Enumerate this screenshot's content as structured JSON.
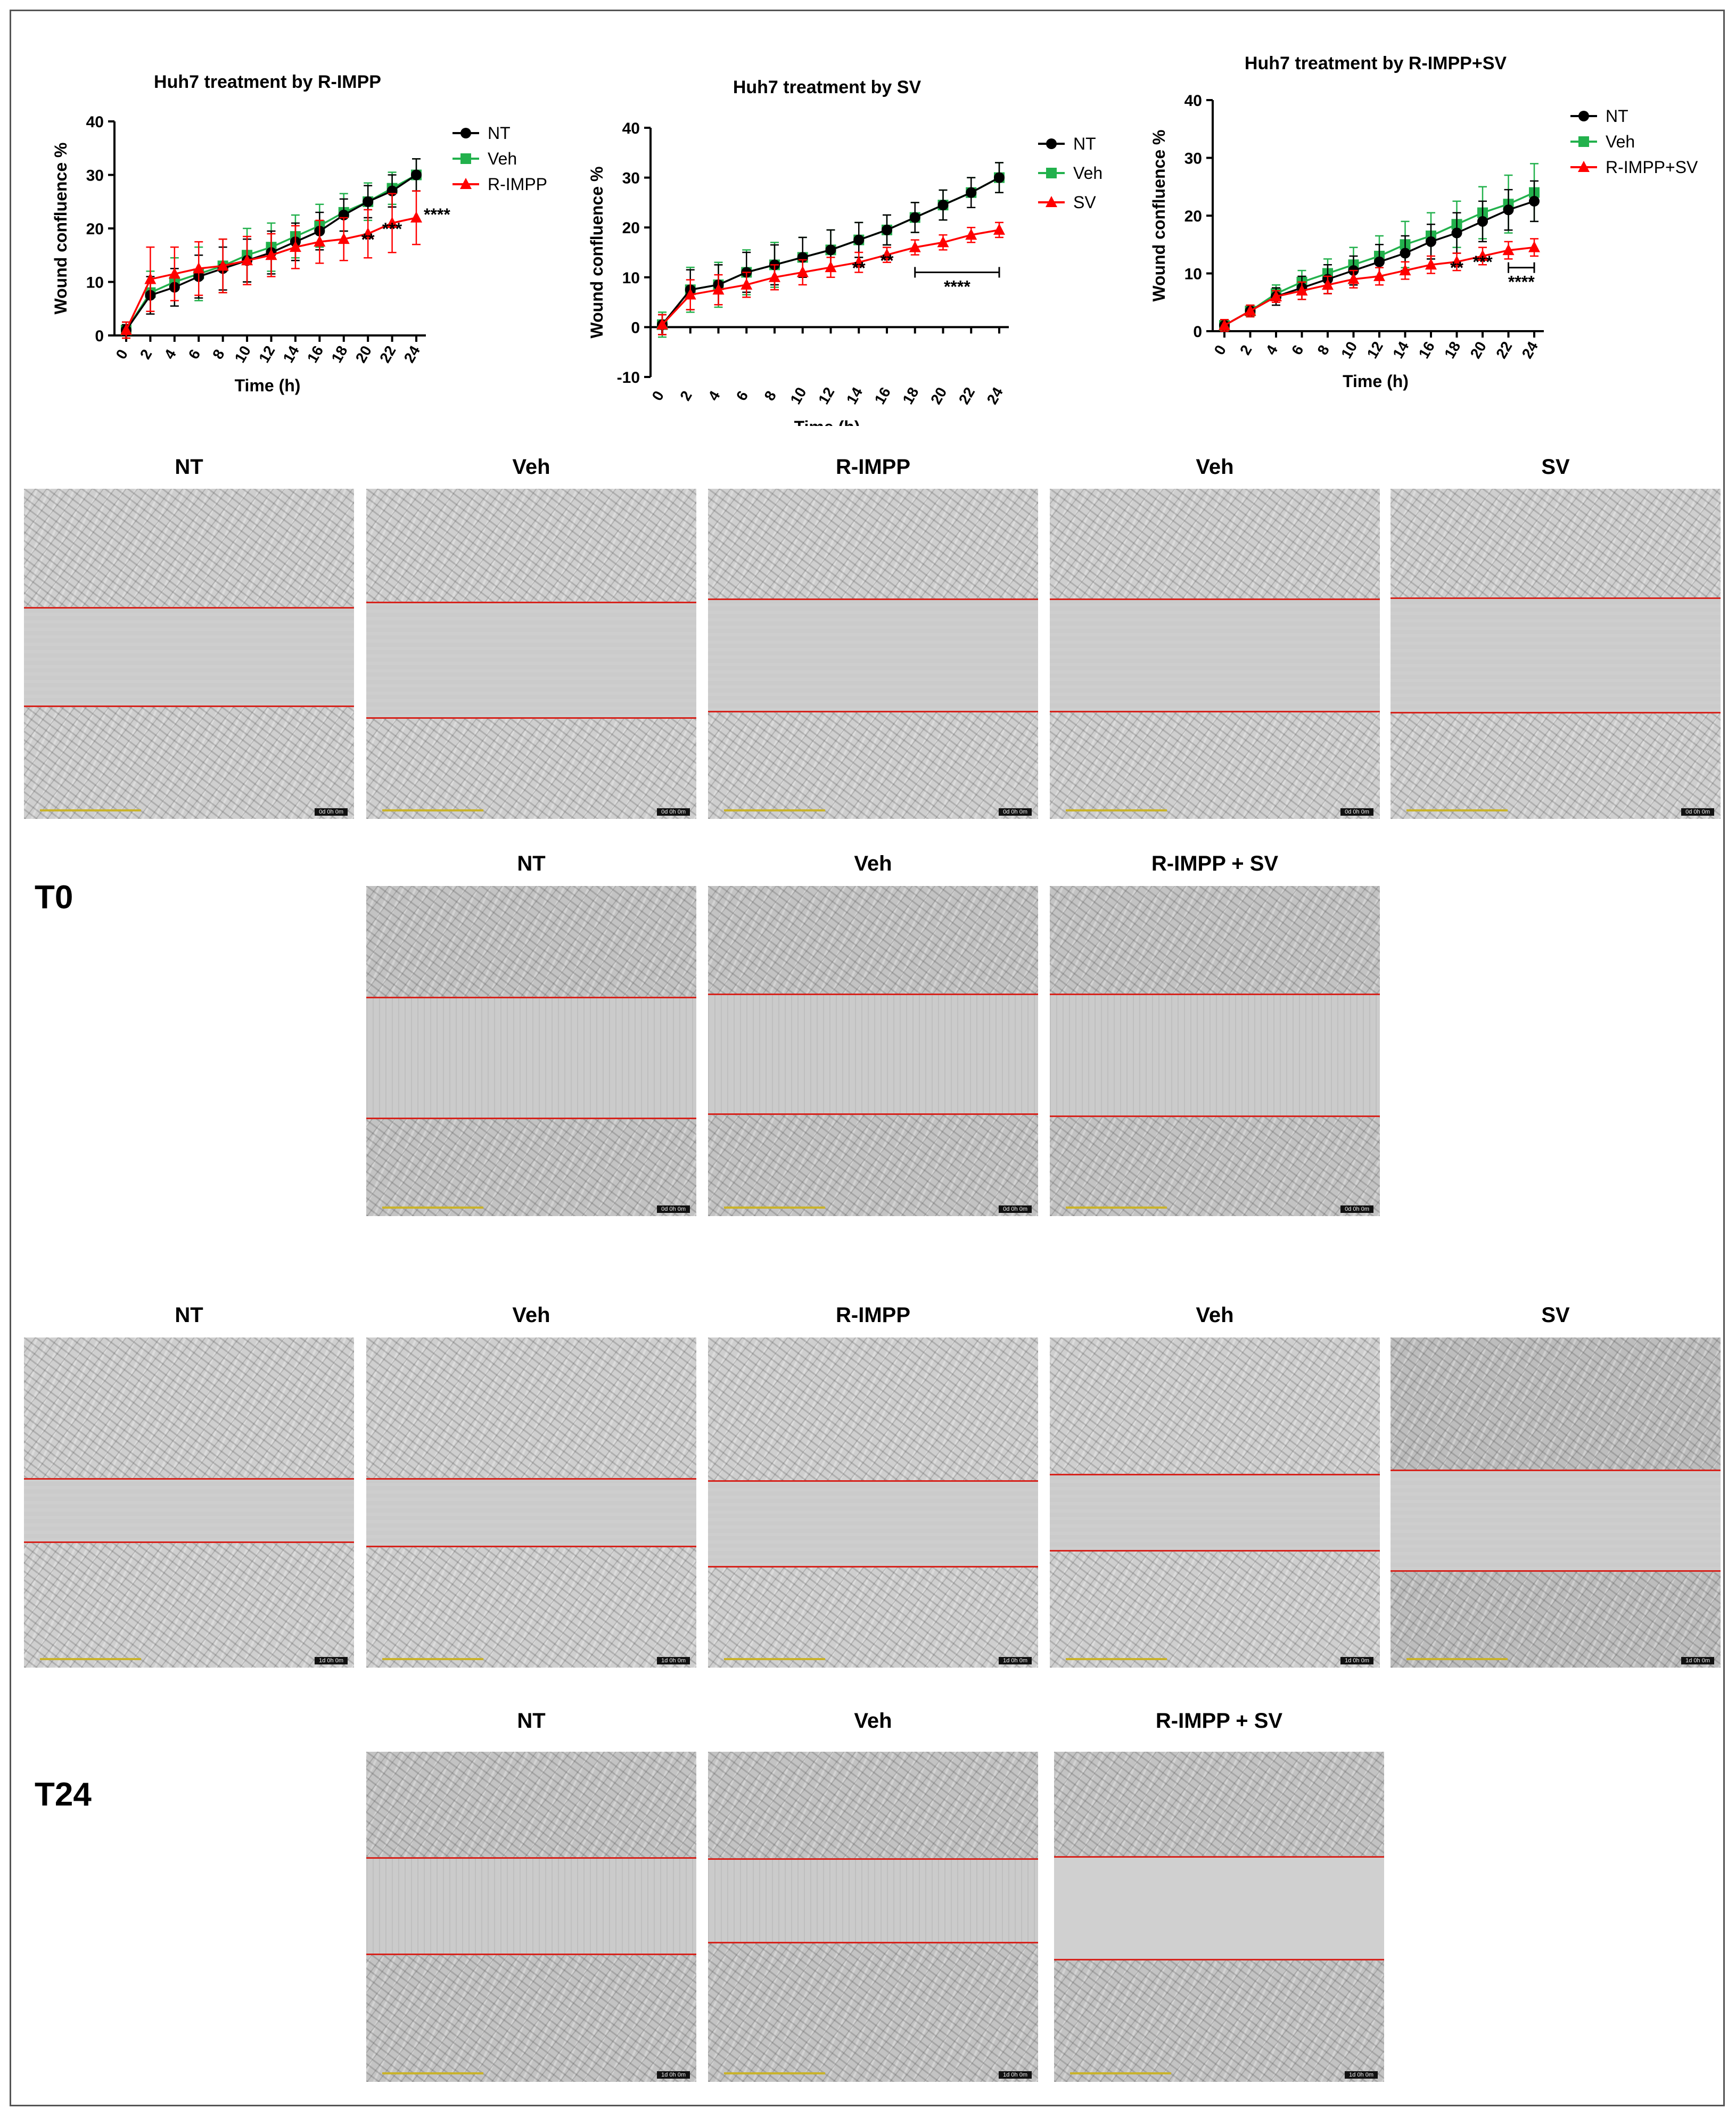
{
  "chart_data": [
    {
      "type": "line",
      "title": "Huh7 treatment by R-IMPP",
      "xlabel": "Time (h)",
      "ylabel": "Wound confluence %",
      "x": [
        0,
        2,
        4,
        6,
        8,
        10,
        12,
        14,
        16,
        18,
        20,
        22,
        24
      ],
      "xticks": [
        "0",
        "2",
        "4",
        "6",
        "8",
        "10",
        "12",
        "14",
        "16",
        "18",
        "20",
        "22",
        "24"
      ],
      "ylim": [
        0,
        40
      ],
      "yticks": [
        "0",
        "10",
        "20",
        "30",
        "40"
      ],
      "legend_position": "top-right",
      "series": [
        {
          "name": "NT",
          "color": "#000000",
          "marker": "circle",
          "values": [
            1,
            7.5,
            9,
            11,
            12.5,
            14,
            15.5,
            17.5,
            19.5,
            22.5,
            25,
            27,
            30
          ],
          "errors": [
            1,
            3.5,
            3.5,
            4,
            4,
            4,
            4,
            3.5,
            3.5,
            3,
            3,
            3,
            3
          ]
        },
        {
          "name": "Veh",
          "color": "#22b14c",
          "marker": "square",
          "values": [
            1,
            8,
            10,
            11.5,
            13,
            15,
            16.5,
            18.5,
            20.5,
            23,
            25,
            27.5,
            30
          ],
          "errors": [
            1.5,
            4,
            4.5,
            5,
            5,
            5,
            4.5,
            4,
            4,
            3.5,
            3.5,
            3,
            3
          ]
        },
        {
          "name": "R-IMPP",
          "color": "#ff0000",
          "marker": "triangle",
          "values": [
            1,
            10.5,
            11.5,
            12.5,
            13,
            14,
            15,
            16.5,
            17.5,
            18,
            19,
            21,
            22
          ],
          "errors": [
            1.5,
            6,
            5,
            5,
            5,
            4.5,
            4,
            4,
            4,
            4,
            4.5,
            5.5,
            5
          ]
        }
      ],
      "annotations": [
        {
          "x": 20,
          "text": "**"
        },
        {
          "x": 22,
          "text": "***"
        },
        {
          "x": 24,
          "text": "****"
        }
      ]
    },
    {
      "type": "line",
      "title": "Huh7 treatment by SV",
      "xlabel": "Time (h)",
      "ylabel": "Wound confluence %",
      "x": [
        0,
        2,
        4,
        6,
        8,
        10,
        12,
        14,
        16,
        18,
        20,
        22,
        24
      ],
      "xticks": [
        "0",
        "2",
        "4",
        "6",
        "8",
        "10",
        "12",
        "14",
        "16",
        "18",
        "20",
        "22",
        "24"
      ],
      "ylim": [
        -10,
        40
      ],
      "yticks": [
        "-10",
        "0",
        "10",
        "20",
        "30",
        "40"
      ],
      "legend_position": "top-right",
      "series": [
        {
          "name": "NT",
          "color": "#000000",
          "marker": "circle",
          "values": [
            0.5,
            7.5,
            8.5,
            11,
            12.5,
            14,
            15.5,
            17.5,
            19.5,
            22,
            24.5,
            27,
            30
          ],
          "errors": [
            2,
            4,
            4,
            4,
            4,
            4,
            4,
            3.5,
            3,
            3,
            3,
            3,
            3
          ]
        },
        {
          "name": "Veh",
          "color": "#22b14c",
          "marker": "square",
          "values": [
            0.5,
            7.5,
            8.5,
            11,
            12.5,
            14,
            15.5,
            17.5,
            19.5,
            22,
            24.5,
            27,
            30
          ],
          "errors": [
            2.5,
            4.5,
            4.5,
            4.5,
            4.5,
            4,
            4,
            3.5,
            3,
            3,
            3,
            3,
            3
          ]
        },
        {
          "name": "SV",
          "color": "#ff0000",
          "marker": "triangle",
          "values": [
            0.5,
            6.5,
            7.5,
            8.5,
            10,
            11,
            12,
            13,
            14.5,
            16,
            17,
            18.5,
            19.5
          ],
          "errors": [
            2,
            3,
            3,
            2.5,
            2.5,
            2.5,
            2,
            2,
            1.5,
            1.5,
            1.5,
            1.5,
            1.5
          ]
        }
      ],
      "annotations": [
        {
          "x": 14,
          "text": "**"
        },
        {
          "x": 16,
          "text": "**"
        },
        {
          "x": 21,
          "text": "****",
          "bracket": [
            18,
            24
          ]
        }
      ]
    },
    {
      "type": "line",
      "title": "Huh7 treatment by R-IMPP+SV",
      "xlabel": "Time (h)",
      "ylabel": "Wound confluence %",
      "x": [
        0,
        2,
        4,
        6,
        8,
        10,
        12,
        14,
        16,
        18,
        20,
        22,
        24
      ],
      "xticks": [
        "0",
        "2",
        "4",
        "6",
        "8",
        "10",
        "12",
        "14",
        "16",
        "18",
        "20",
        "22",
        "24"
      ],
      "ylim": [
        0,
        40
      ],
      "yticks": [
        "0",
        "10",
        "20",
        "30",
        "40"
      ],
      "legend_position": "top-right",
      "series": [
        {
          "name": "NT",
          "color": "#000000",
          "marker": "circle",
          "values": [
            1,
            3.5,
            6,
            7.5,
            9,
            10.5,
            12,
            13.5,
            15.5,
            17,
            19,
            21,
            22.5
          ],
          "errors": [
            1,
            1,
            1.5,
            2,
            2.5,
            2.5,
            3,
            3,
            3,
            3.5,
            3.5,
            3.5,
            3.5
          ]
        },
        {
          "name": "Veh",
          "color": "#22b14c",
          "marker": "square",
          "values": [
            1,
            3.5,
            6.5,
            8.5,
            10,
            11.5,
            13,
            15,
            16.5,
            18.5,
            20.5,
            22,
            24
          ],
          "errors": [
            1,
            1,
            1.5,
            2,
            2.5,
            3,
            3.5,
            4,
            4,
            4,
            4.5,
            5,
            5
          ]
        },
        {
          "name": "R-IMPP+SV",
          "color": "#ff0000",
          "marker": "triangle",
          "values": [
            1,
            3.5,
            6,
            7,
            8,
            9,
            9.5,
            10.5,
            11.5,
            12,
            13,
            14,
            14.5
          ],
          "errors": [
            1,
            1,
            1,
            1.5,
            1.5,
            1.5,
            1.5,
            1.5,
            1.5,
            1.5,
            1.5,
            1.5,
            1.5
          ]
        }
      ],
      "annotations": [
        {
          "x": 18,
          "text": "**"
        },
        {
          "x": 20,
          "text": "***"
        },
        {
          "x": 23,
          "text": "****",
          "bracket": [
            22,
            24
          ]
        }
      ]
    }
  ],
  "panels": {
    "t0_top_labels": [
      "NT",
      "Veh",
      "R-IMPP",
      "Veh",
      "SV"
    ],
    "t0_bottom_labels": [
      "NT",
      "Veh",
      "R-IMPP + SV"
    ],
    "t24_top_labels": [
      "NT",
      "Veh",
      "R-IMPP",
      "Veh",
      "SV"
    ],
    "t24_bottom_labels": [
      "NT",
      "Veh",
      "R-IMPP + SV"
    ],
    "t0_label": "T0",
    "t24_label": "T24",
    "stamp_t0": "0d 0h 0m",
    "stamp_t24": "1d 0h 0m"
  }
}
